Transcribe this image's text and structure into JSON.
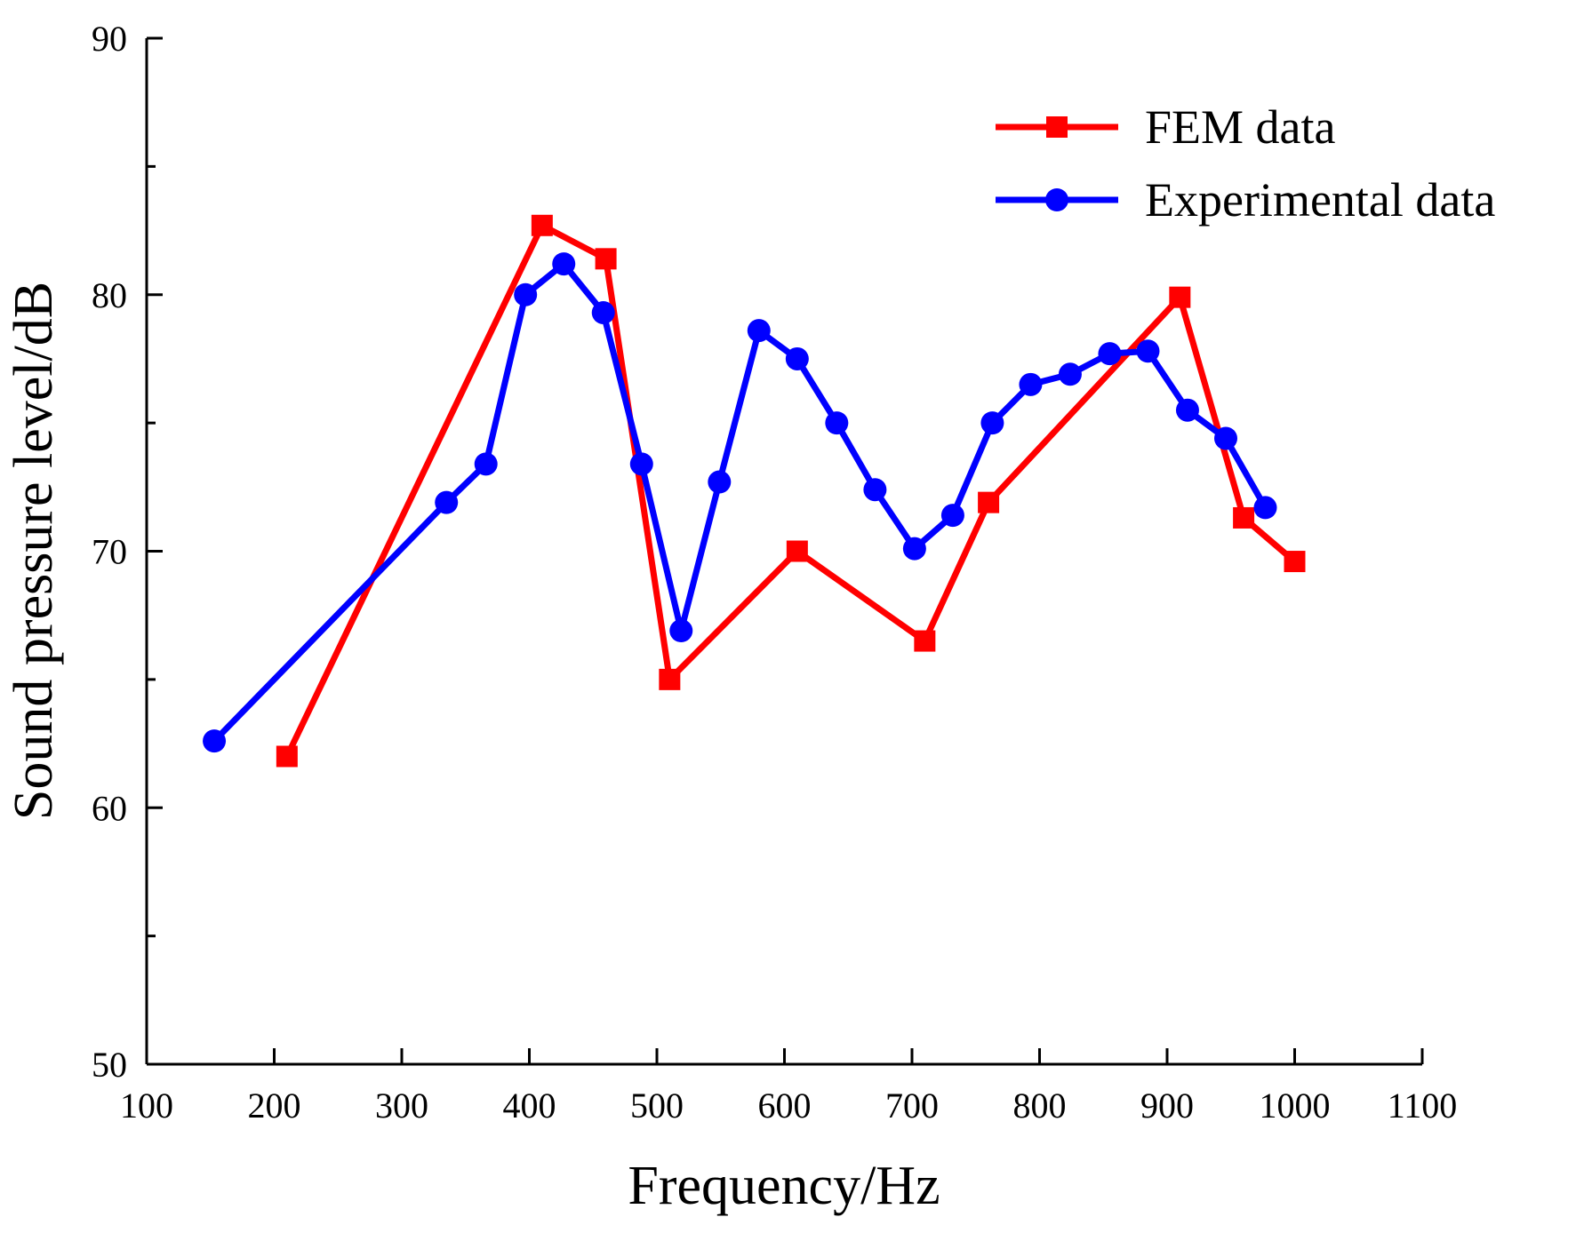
{
  "chart_data": {
    "type": "line",
    "title": "",
    "xlabel": "Frequency/Hz",
    "ylabel": "Sound pressure level/dB",
    "xlim": [
      100,
      1100
    ],
    "ylim": [
      50,
      90
    ],
    "xticks": [
      100,
      200,
      300,
      400,
      500,
      600,
      700,
      800,
      900,
      1000,
      1100
    ],
    "yticks": [
      50,
      60,
      70,
      80,
      90
    ],
    "yminor_ticks": [
      55,
      65,
      75,
      85
    ],
    "grid": false,
    "legend_position": "top-right",
    "series": [
      {
        "name": "FEM data",
        "color": "#ff0000",
        "marker": "square",
        "x": [
          210,
          410,
          460,
          510,
          610,
          710,
          760,
          910,
          960,
          1000
        ],
        "y": [
          62.0,
          82.7,
          81.4,
          65.0,
          70.0,
          66.5,
          71.9,
          79.9,
          71.3,
          69.6
        ]
      },
      {
        "name": "Experimental data",
        "color": "#0000ff",
        "marker": "circle",
        "x": [
          153,
          335,
          366,
          397,
          427,
          458,
          488,
          519,
          549,
          580,
          610,
          641,
          671,
          702,
          732,
          763,
          793,
          824,
          855,
          885,
          916,
          946,
          977
        ],
        "y": [
          62.6,
          71.9,
          73.4,
          80.0,
          81.2,
          79.3,
          73.4,
          66.9,
          72.7,
          78.6,
          77.5,
          75.0,
          72.4,
          70.1,
          71.4,
          75.0,
          76.5,
          76.9,
          77.7,
          77.8,
          75.5,
          74.4,
          71.7
        ]
      }
    ]
  }
}
